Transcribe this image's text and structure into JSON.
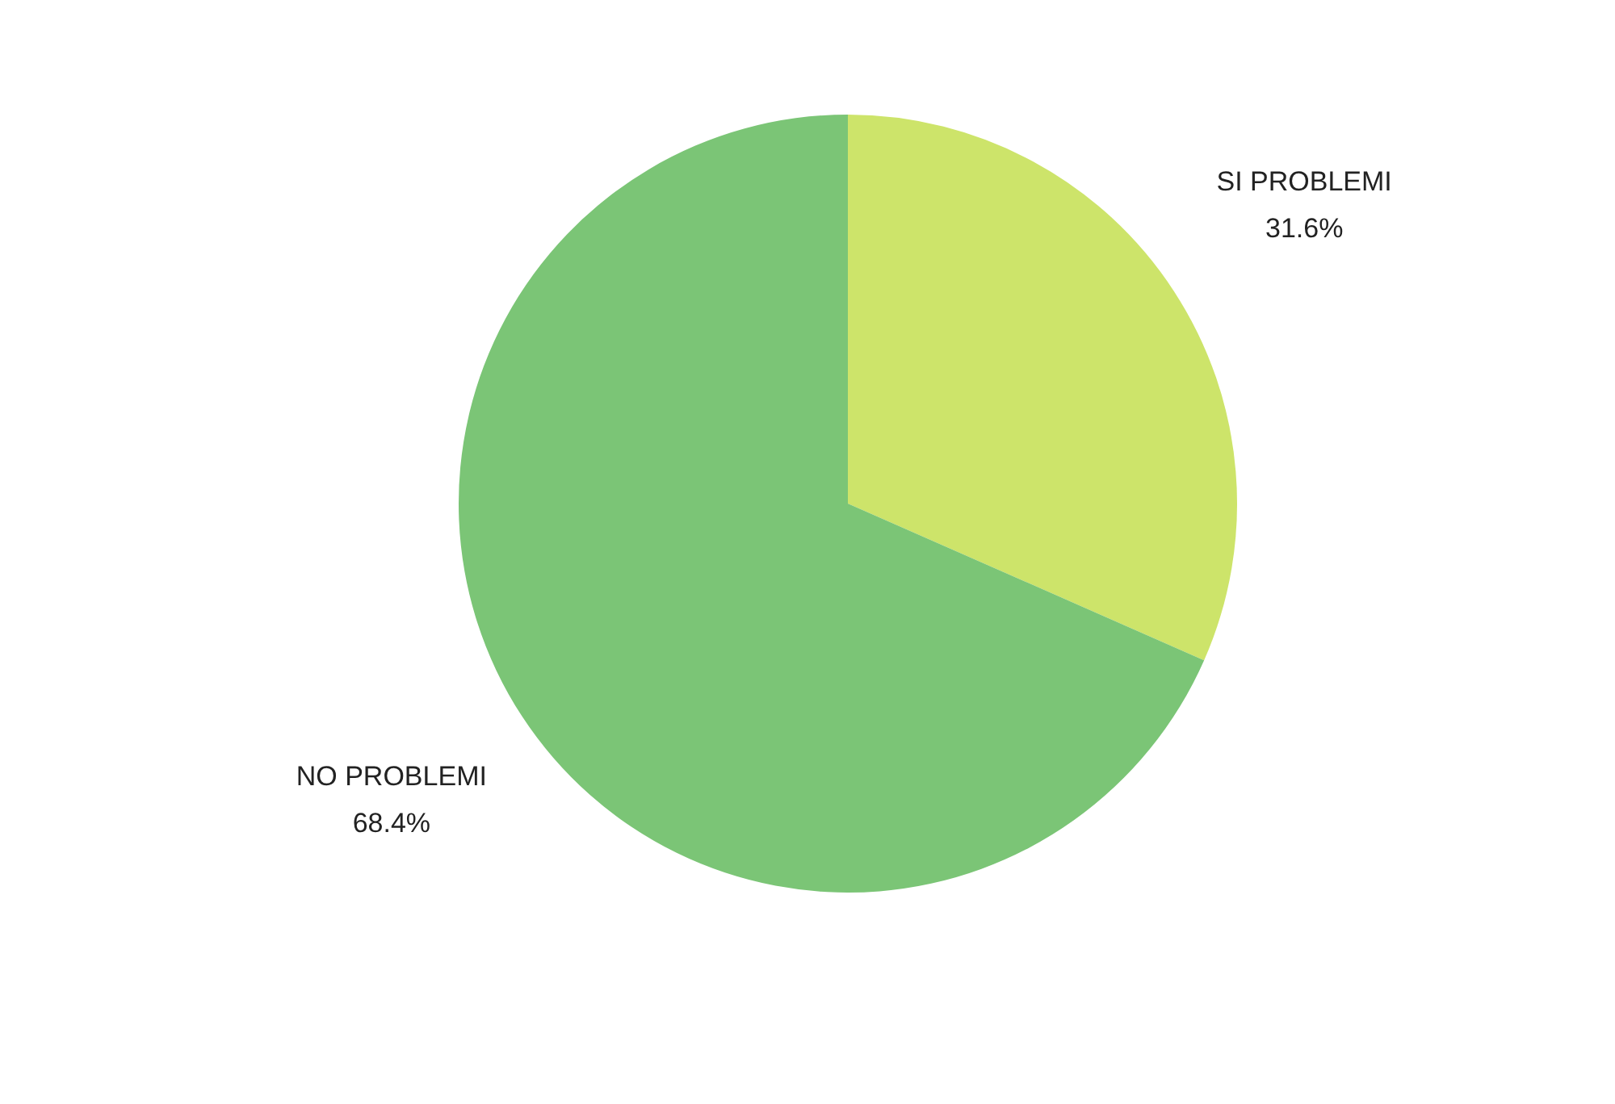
{
  "chart_data": {
    "type": "pie",
    "categories": [
      "SI PROBLEMI",
      "NO PROBLEMI"
    ],
    "values": [
      31.6,
      68.4
    ],
    "colors": [
      "#cde46a",
      "#7bc576"
    ],
    "value_labels": [
      "31.6%",
      "68.4%"
    ],
    "legend": false
  }
}
